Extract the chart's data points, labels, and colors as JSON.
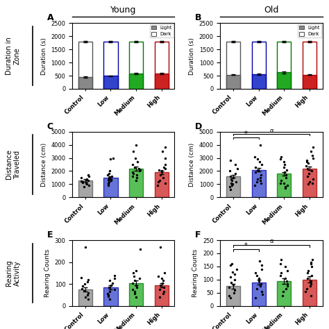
{
  "title_young": "Young",
  "title_old": "Old",
  "categories": [
    "Control",
    "Low",
    "Medium",
    "High"
  ],
  "bar_colors": [
    "#888888",
    "#3344cc",
    "#22aa22",
    "#cc2222"
  ],
  "bar_edge_colors": [
    "#555555",
    "#0000aa",
    "#007700",
    "#aa0000"
  ],
  "A_light_vals": [
    450,
    490,
    570,
    590
  ],
  "A_light_err": [
    20,
    20,
    25,
    25
  ],
  "A_dark_vals": [
    1800,
    1800,
    1800,
    1800
  ],
  "A_dark_err": [
    30,
    30,
    30,
    30
  ],
  "B_light_vals": [
    540,
    560,
    620,
    540
  ],
  "B_light_err": [
    25,
    25,
    30,
    20
  ],
  "B_dark_vals": [
    1800,
    1800,
    1800,
    1800
  ],
  "B_dark_err": [
    30,
    30,
    30,
    30
  ],
  "C_means": [
    1300,
    1500,
    2200,
    1900
  ],
  "C_err": [
    100,
    120,
    150,
    130
  ],
  "C_dots": [
    [
      800,
      900,
      1000,
      1100,
      1150,
      1200,
      1250,
      1300,
      1350,
      1400,
      1500,
      1600,
      1700
    ],
    [
      900,
      1000,
      1100,
      1200,
      1300,
      1400,
      1500,
      1600,
      1700,
      1800,
      2000,
      2900,
      3000,
      1350
    ],
    [
      1300,
      1500,
      1600,
      1700,
      1800,
      1900,
      2000,
      2100,
      2200,
      2300,
      2500,
      2700,
      3000,
      3500,
      4000
    ],
    [
      900,
      1100,
      1300,
      1500,
      1700,
      1900,
      2000,
      2100,
      2200,
      2300,
      2500,
      3000,
      3500,
      3800,
      1200
    ]
  ],
  "D_means": [
    1600,
    2100,
    1800,
    2200
  ],
  "D_err": [
    120,
    130,
    120,
    140
  ],
  "D_dots": [
    [
      600,
      800,
      900,
      1000,
      1100,
      1200,
      1300,
      1400,
      1500,
      1600,
      1800,
      2000,
      2200,
      2500,
      2800
    ],
    [
      900,
      1100,
      1300,
      1500,
      1700,
      1900,
      2100,
      2300,
      2500,
      2700,
      2900,
      3100,
      1200,
      1400,
      4000
    ],
    [
      700,
      900,
      1100,
      1300,
      1500,
      1700,
      1900,
      2100,
      2300,
      2500,
      2700,
      2900,
      3100,
      1100,
      800
    ],
    [
      1000,
      1200,
      1400,
      1600,
      1800,
      2000,
      2200,
      2400,
      2600,
      2800,
      3000,
      3200,
      3500,
      3800,
      1100,
      2700
    ]
  ],
  "E_means": [
    75,
    85,
    105,
    95
  ],
  "E_err": [
    10,
    10,
    12,
    10
  ],
  "E_dots": [
    [
      30,
      40,
      50,
      60,
      70,
      80,
      90,
      100,
      110,
      120,
      130,
      270
    ],
    [
      30,
      45,
      55,
      65,
      75,
      85,
      95,
      105,
      115,
      125,
      140,
      50
    ],
    [
      40,
      55,
      65,
      75,
      85,
      95,
      105,
      115,
      125,
      135,
      150,
      160,
      260
    ],
    [
      40,
      55,
      65,
      75,
      85,
      95,
      105,
      115,
      125,
      135,
      150,
      270
    ]
  ],
  "F_means": [
    75,
    90,
    95,
    100
  ],
  "F_err": [
    10,
    10,
    10,
    12
  ],
  "F_dots": [
    [
      30,
      40,
      50,
      60,
      70,
      80,
      90,
      100,
      110,
      120,
      130,
      140,
      155,
      160
    ],
    [
      30,
      45,
      55,
      65,
      75,
      85,
      95,
      105,
      115,
      125,
      140,
      155,
      170
    ],
    [
      40,
      55,
      65,
      75,
      85,
      95,
      105,
      115,
      125,
      135,
      150,
      160,
      175
    ],
    [
      40,
      55,
      65,
      75,
      85,
      95,
      105,
      115,
      125,
      135,
      150,
      160,
      175,
      165
    ]
  ],
  "ylim_AB": [
    0,
    2500
  ],
  "ylim_CD": [
    0,
    5000
  ],
  "ylim_E": [
    0,
    300
  ],
  "ylim_F": [
    0,
    250
  ],
  "yticks_AB": [
    0,
    500,
    1000,
    1500,
    2000,
    2500
  ],
  "yticks_CD": [
    0,
    1000,
    2000,
    3000,
    4000,
    5000
  ],
  "yticks_E": [
    0,
    100,
    200,
    300
  ],
  "yticks_F": [
    0,
    50,
    100,
    150,
    200,
    250
  ],
  "ylabel_A": "Duration (s)",
  "ylabel_B": "Duration (s)",
  "ylabel_C": "Distance (cm)",
  "ylabel_D": "Distance (cm)",
  "ylabel_E": "Rearing Counts",
  "ylabel_F": "Rearing Counts"
}
